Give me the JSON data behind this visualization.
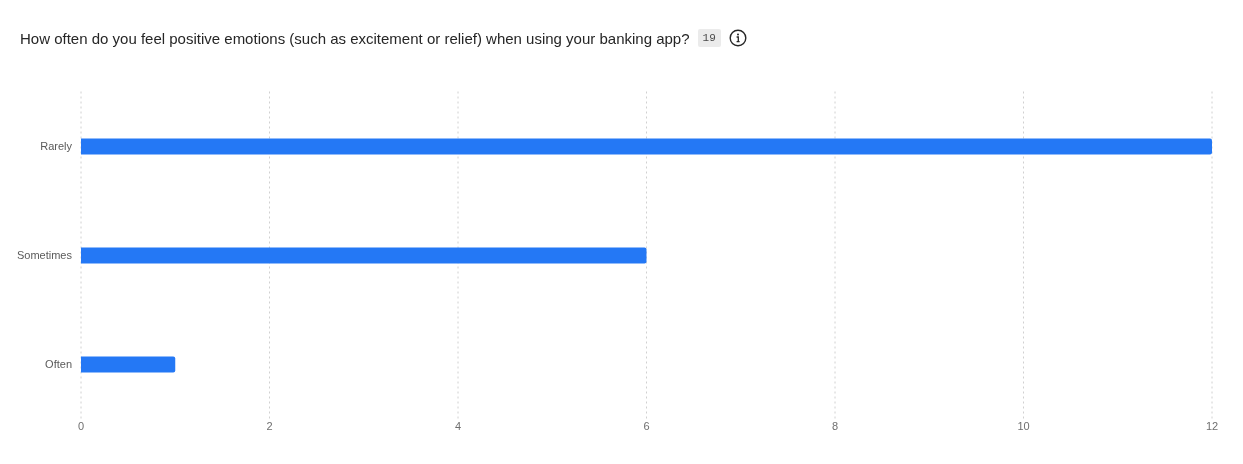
{
  "chart_data": {
    "type": "bar",
    "orientation": "horizontal",
    "title": "How often do you feel positive emotions (such as excitement or relief) when using your banking app?",
    "annotations": [
      "19"
    ],
    "categories": [
      "Rarely",
      "Sometimes",
      "Often"
    ],
    "values": [
      12,
      6,
      1
    ],
    "color": "#2478f5",
    "xlim": [
      0,
      12
    ],
    "xticks": [
      0,
      2,
      4,
      6,
      8,
      10,
      12
    ],
    "grid": "x"
  }
}
